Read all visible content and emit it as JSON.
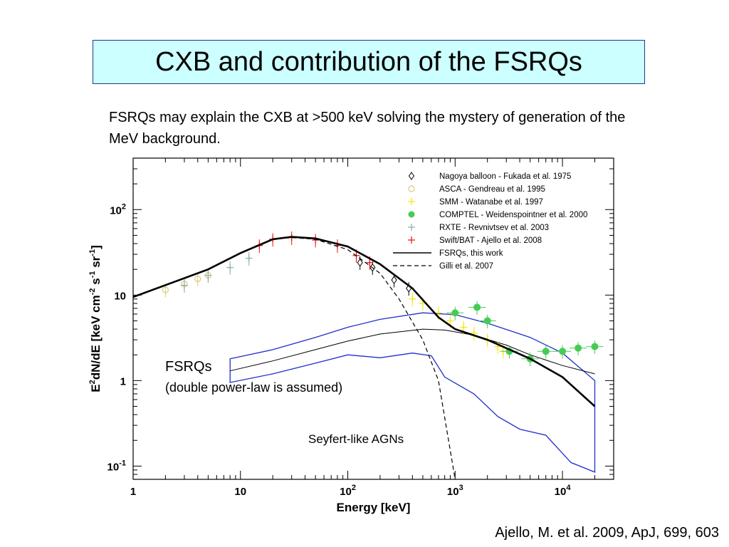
{
  "slide": {
    "title": "CXB and contribution of the FSRQs",
    "subtitle": "FSRQs may explain the CXB at >500 keV solving the mystery of generation of the MeV background.",
    "citation": "Ajello, M. et al. 2009, ApJ, 699, 603"
  },
  "chart_data": {
    "type": "line",
    "xlabel": "Energy [keV]",
    "ylabel_parts": [
      "E",
      "2",
      "dN/dE [keV cm",
      "-2",
      " s",
      "-1",
      " sr",
      "-1",
      "]"
    ],
    "xscale": "log",
    "yscale": "log",
    "xlim": [
      1,
      30000
    ],
    "ylim": [
      0.07,
      400
    ],
    "xticks": [
      {
        "value": 1,
        "base": "1",
        "exp": ""
      },
      {
        "value": 10,
        "base": "10",
        "exp": ""
      },
      {
        "value": 100,
        "base": "10",
        "exp": "2"
      },
      {
        "value": 1000,
        "base": "10",
        "exp": "3"
      },
      {
        "value": 10000,
        "base": "10",
        "exp": "4"
      }
    ],
    "yticks": [
      {
        "value": 0.1,
        "base": "10",
        "exp": "-1"
      },
      {
        "value": 1,
        "base": "1",
        "exp": ""
      },
      {
        "value": 10,
        "base": "10",
        "exp": ""
      },
      {
        "value": 100,
        "base": "10",
        "exp": "2"
      }
    ],
    "legend_position": "top-right",
    "series": [
      {
        "name": "Nagoya balloon - Fukada et al. 1975",
        "marker": "diamond-open",
        "color": "#000000",
        "points": [
          [
            130,
            24
          ],
          [
            170,
            21
          ],
          [
            270,
            15
          ],
          [
            370,
            12
          ]
        ]
      },
      {
        "name": "ASCA - Gendreau et al. 1995",
        "marker": "circle-open",
        "color": "#d8cc7a",
        "points": [
          [
            2,
            11.5
          ],
          [
            3,
            13.5
          ],
          [
            4,
            15.5
          ],
          [
            5,
            17
          ]
        ]
      },
      {
        "name": "SMM - Watanabe et al. 1997",
        "marker": "plus",
        "color": "#f2e600",
        "points": [
          [
            400,
            9
          ],
          [
            500,
            8
          ],
          [
            700,
            6.2
          ],
          [
            900,
            5
          ],
          [
            1200,
            4.2
          ],
          [
            1500,
            3.6
          ],
          [
            2000,
            3.0
          ],
          [
            2500,
            2.5
          ],
          [
            2800,
            2.2
          ]
        ]
      },
      {
        "name": "COMPTEL - Weidenspointner et al. 2000",
        "marker": "circle-filled",
        "color": "#44cc55",
        "points": [
          [
            1000,
            6.2
          ],
          [
            1600,
            7.2
          ],
          [
            2000,
            5.0
          ],
          [
            3200,
            2.2
          ],
          [
            5000,
            1.8
          ],
          [
            7000,
            2.2
          ],
          [
            10000,
            2.2
          ],
          [
            14000,
            2.4
          ],
          [
            20000,
            2.5
          ]
        ]
      },
      {
        "name": "RXTE - Revnivtsev et al. 2003",
        "marker": "plus",
        "color": "#88aaaa",
        "points": [
          [
            3,
            13
          ],
          [
            5,
            17
          ],
          [
            8,
            21
          ],
          [
            12,
            27
          ]
        ]
      },
      {
        "name": "Swift/BAT - Ajello et al. 2008",
        "marker": "plus",
        "color": "#ee1111",
        "points": [
          [
            15,
            38
          ],
          [
            20,
            45
          ],
          [
            30,
            47
          ],
          [
            50,
            44
          ],
          [
            80,
            38
          ],
          [
            120,
            29
          ],
          [
            160,
            24
          ]
        ]
      },
      {
        "name": "FSRQs, this work",
        "marker": "line-solid",
        "color": "#000000",
        "points": [
          [
            1,
            9.5
          ],
          [
            5,
            20
          ],
          [
            10,
            31
          ],
          [
            20,
            45
          ],
          [
            30,
            48
          ],
          [
            50,
            46
          ],
          [
            100,
            37
          ],
          [
            200,
            23
          ],
          [
            400,
            12
          ],
          [
            700,
            5.5
          ],
          [
            1000,
            4
          ],
          [
            2000,
            3
          ],
          [
            5000,
            1.8
          ],
          [
            10000,
            1.1
          ],
          [
            20000,
            0.5
          ]
        ]
      },
      {
        "name": "Gilli et al. 2007",
        "marker": "line-dashed",
        "color": "#000000",
        "points": [
          [
            1,
            9.5
          ],
          [
            5,
            20
          ],
          [
            10,
            31
          ],
          [
            20,
            45
          ],
          [
            30,
            47
          ],
          [
            50,
            45
          ],
          [
            100,
            34
          ],
          [
            200,
            18
          ],
          [
            300,
            9
          ],
          [
            500,
            3
          ],
          [
            700,
            1
          ],
          [
            1000,
            0.07
          ]
        ]
      }
    ],
    "fsrq_band": {
      "central": [
        [
          8,
          1.3
        ],
        [
          20,
          1.7
        ],
        [
          50,
          2.3
        ],
        [
          100,
          2.9
        ],
        [
          200,
          3.5
        ],
        [
          500,
          4.0
        ],
        [
          800,
          3.9
        ],
        [
          1500,
          3.4
        ],
        [
          3000,
          2.6
        ],
        [
          5000,
          2.0
        ],
        [
          10000,
          1.5
        ],
        [
          20000,
          1.2
        ]
      ],
      "upper": [
        [
          8,
          1.8
        ],
        [
          20,
          2.3
        ],
        [
          50,
          3.2
        ],
        [
          100,
          4.2
        ],
        [
          200,
          5.2
        ],
        [
          500,
          6.2
        ],
        [
          1000,
          5.9
        ],
        [
          2000,
          4.7
        ],
        [
          5000,
          3.2
        ],
        [
          10000,
          2.1
        ],
        [
          20000,
          1.0
        ]
      ],
      "lower": [
        [
          8,
          0.95
        ],
        [
          20,
          1.2
        ],
        [
          50,
          1.6
        ],
        [
          100,
          2.0
        ],
        [
          200,
          1.85
        ],
        [
          400,
          2.1
        ],
        [
          600,
          1.95
        ],
        [
          800,
          1.1
        ],
        [
          1500,
          0.7
        ],
        [
          2500,
          0.38
        ],
        [
          4000,
          0.27
        ],
        [
          7000,
          0.23
        ],
        [
          12000,
          0.11
        ],
        [
          20000,
          0.085
        ]
      ]
    },
    "annotations": {
      "fsrq_label": "FSRQs",
      "fsrq_note": "(double power-law is assumed)",
      "seyfert_label": "Seyfert-like AGNs"
    }
  }
}
